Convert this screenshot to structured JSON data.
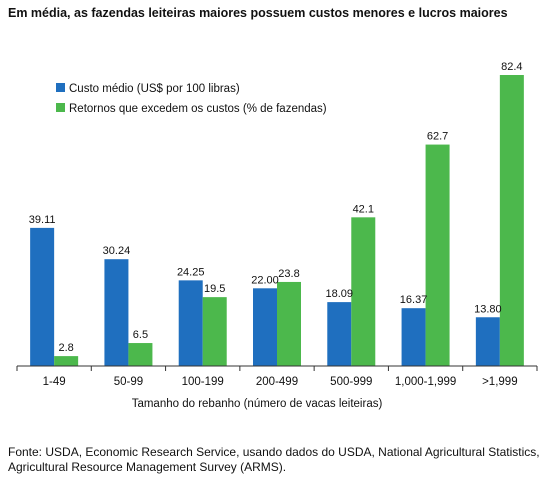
{
  "chart_data": {
    "type": "bar",
    "title": "Em média, as fazendas leiteiras maiores possuem custos menores e lucros maiores",
    "xlabel": "Tamanho do rebanho (número de vacas leiteiras)",
    "ylabel": "",
    "categories": [
      "1-49",
      "50-99",
      "100-199",
      "200-499",
      "500-999",
      "1,000-1,999",
      ">1,999"
    ],
    "series": [
      {
        "name": "Custo médio (US$ por 100 libras)",
        "color": "#1f6fbf",
        "values": [
          39.11,
          30.24,
          24.25,
          22.0,
          18.09,
          16.37,
          13.8
        ],
        "labels": [
          "39.11",
          "30.24",
          "24.25",
          "22.00",
          "18.09",
          "16.37",
          "13.80"
        ]
      },
      {
        "name": "Retornos que excedem os custos (% de fazendas)",
        "color": "#4cb84c",
        "values": [
          2.8,
          6.5,
          19.5,
          23.8,
          42.1,
          62.7,
          82.4
        ],
        "labels": [
          "2.8",
          "6.5",
          "19.5",
          "23.8",
          "42.1",
          "62.7",
          "82.4"
        ]
      }
    ],
    "ylim": [
      0,
      82.4
    ],
    "grid": false,
    "legend_position": "top-left"
  },
  "source": "Fonte: USDA, Economic Research Service, usando dados do USDA, National Agricultural Statistics, Agricultural Resource Management Survey (ARMS)."
}
